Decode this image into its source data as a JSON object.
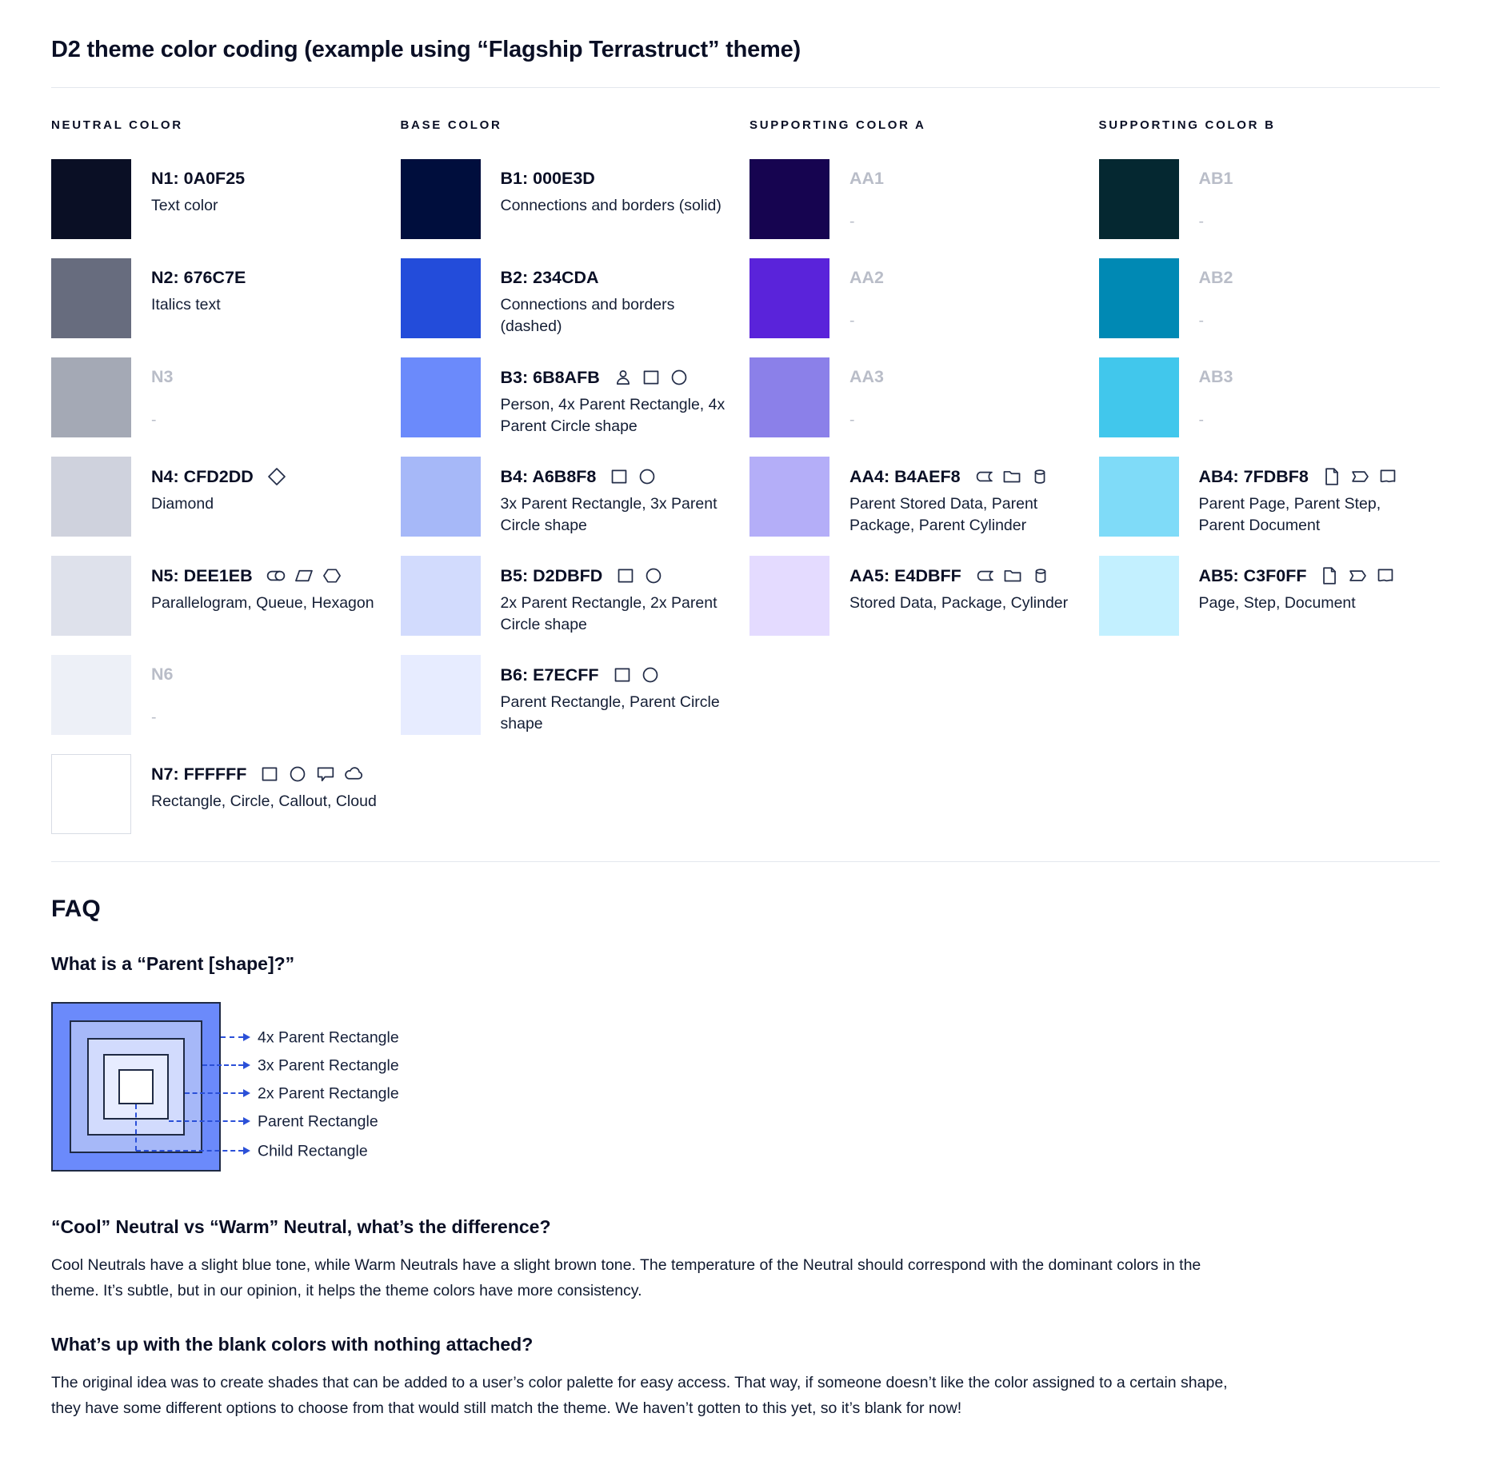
{
  "page": {
    "title": "D2 theme color coding (example using “Flagship Terrastruct” theme)"
  },
  "palette": {
    "columns": [
      {
        "header": "NEUTRAL COLOR",
        "rows": [
          {
            "label": "N1: 0A0F25",
            "swatch": "#0A0F25",
            "desc": "Text color",
            "icons": [],
            "blank": false,
            "border": false
          },
          {
            "label": "N2: 676C7E",
            "swatch": "#676C7E",
            "desc": "Italics text",
            "icons": [],
            "blank": false,
            "border": false
          },
          {
            "label": "N3",
            "swatch": "#A4A9B5",
            "desc": "-",
            "icons": [],
            "blank": true,
            "border": false
          },
          {
            "label": "N4: CFD2DD",
            "swatch": "#CFD2DD",
            "desc": "Diamond",
            "icons": [
              "diamond"
            ],
            "blank": false,
            "border": false
          },
          {
            "label": "N5: DEE1EB",
            "swatch": "#DEE1EB",
            "desc": "Parallelogram, Queue, Hexagon",
            "icons": [
              "queue",
              "parallelogram",
              "hexagon"
            ],
            "blank": false,
            "border": false
          },
          {
            "label": "N6",
            "swatch": "#EDF0F7",
            "desc": "-",
            "icons": [],
            "blank": true,
            "border": false
          },
          {
            "label": "N7: FFFFFF",
            "swatch": "#FFFFFF",
            "desc": "Rectangle, Circle, Callout, Cloud",
            "icons": [
              "rectangle",
              "circle",
              "callout",
              "cloud"
            ],
            "blank": false,
            "border": true
          }
        ]
      },
      {
        "header": "BASE COLOR",
        "rows": [
          {
            "label": "B1: 000E3D",
            "swatch": "#000E3D",
            "desc": "Connections and borders (solid)",
            "icons": [],
            "blank": false,
            "border": false
          },
          {
            "label": "B2: 234CDA",
            "swatch": "#234CDA",
            "desc": "Connections and borders (dashed)",
            "icons": [],
            "blank": false,
            "border": false
          },
          {
            "label": "B3: 6B8AFB",
            "swatch": "#6B8AFB",
            "desc": "Person, 4x Parent Rectangle, 4x Parent Circle shape",
            "icons": [
              "person",
              "rectangle",
              "circle"
            ],
            "blank": false,
            "border": false
          },
          {
            "label": "B4: A6B8F8",
            "swatch": "#A6B8F8",
            "desc": "3x Parent Rectangle, 3x Parent Circle shape",
            "icons": [
              "rectangle",
              "circle"
            ],
            "blank": false,
            "border": false
          },
          {
            "label": "B5: D2DBFD",
            "swatch": "#D2DBFD",
            "desc": "2x Parent Rectangle, 2x Parent Circle shape",
            "icons": [
              "rectangle",
              "circle"
            ],
            "blank": false,
            "border": false
          },
          {
            "label": "B6: E7ECFF",
            "swatch": "#E7ECFF",
            "desc": "Parent Rectangle, Parent Circle shape",
            "icons": [
              "rectangle",
              "circle"
            ],
            "blank": false,
            "border": false
          }
        ]
      },
      {
        "header": "SUPPORTING COLOR A",
        "rows": [
          {
            "label": "AA1",
            "swatch": "#160450",
            "desc": "-",
            "icons": [],
            "blank": true,
            "border": false
          },
          {
            "label": "AA2",
            "swatch": "#5A23DA",
            "desc": "-",
            "icons": [],
            "blank": true,
            "border": false
          },
          {
            "label": "AA3",
            "swatch": "#8B80E9",
            "desc": "-",
            "icons": [],
            "blank": true,
            "border": false
          },
          {
            "label": "AA4: B4AEF8",
            "swatch": "#B4AEF8",
            "desc": "Parent Stored Data, Parent Package,  Parent Cylinder",
            "icons": [
              "stored-data",
              "package",
              "cylinder"
            ],
            "blank": false,
            "border": false
          },
          {
            "label": "AA5: E4DBFF",
            "swatch": "#E4DBFF",
            "desc": "Stored Data, Package, Cylinder",
            "icons": [
              "stored-data",
              "package",
              "cylinder"
            ],
            "blank": false,
            "border": false
          }
        ]
      },
      {
        "header": "SUPPORTING COLOR B",
        "rows": [
          {
            "label": "AB1",
            "swatch": "#052831",
            "desc": "-",
            "icons": [],
            "blank": true,
            "border": false
          },
          {
            "label": "AB2",
            "swatch": "#0089B4",
            "desc": "-",
            "icons": [],
            "blank": true,
            "border": false
          },
          {
            "label": "AB3",
            "swatch": "#41C7EC",
            "desc": "-",
            "icons": [],
            "blank": true,
            "border": false
          },
          {
            "label": "AB4: 7FDBF8",
            "swatch": "#7FDBF8",
            "desc": "Parent Page, Parent Step, Parent Document",
            "icons": [
              "page",
              "step",
              "document"
            ],
            "blank": false,
            "border": false
          },
          {
            "label": "AB5: C3F0FF",
            "swatch": "#C3F0FF",
            "desc": "Page, Step, Document",
            "icons": [
              "page",
              "step",
              "document"
            ],
            "blank": false,
            "border": false
          }
        ]
      }
    ]
  },
  "faq": {
    "heading": "FAQ",
    "q1": {
      "question": "What is a “Parent [shape]?”",
      "diagram": {
        "arrow_color": "#2B50D8",
        "border_color": "#1F2A44",
        "levels": [
          {
            "label": "4x Parent Rectangle",
            "color": "#6B8AFB"
          },
          {
            "label": "3x Parent Rectangle",
            "color": "#A6B8F8"
          },
          {
            "label": "2x Parent Rectangle",
            "color": "#D2DBFD"
          },
          {
            "label": "Parent Rectangle",
            "color": "#E7ECFF"
          },
          {
            "label": "Child Rectangle",
            "color": "#FFFFFF"
          }
        ]
      }
    },
    "q2": {
      "question": "“Cool” Neutral vs “Warm” Neutral, what’s the difference?",
      "answer": "Cool Neutrals have a slight blue tone, while Warm Neutrals have a slight brown tone. The temperature of the Neutral should correspond with the dominant colors in the theme. It’s subtle, but in our opinion, it helps the theme colors have more consistency."
    },
    "q3": {
      "question": "What’s up with the blank colors with nothing attached?",
      "answer": "The original idea was to create shades that can be added to a user’s color palette for easy access. That way, if someone doesn’t like the color assigned to a certain shape, they have some different options to choose from that would still match the theme. We haven’t gotten to this yet, so it’s blank for now!"
    }
  }
}
